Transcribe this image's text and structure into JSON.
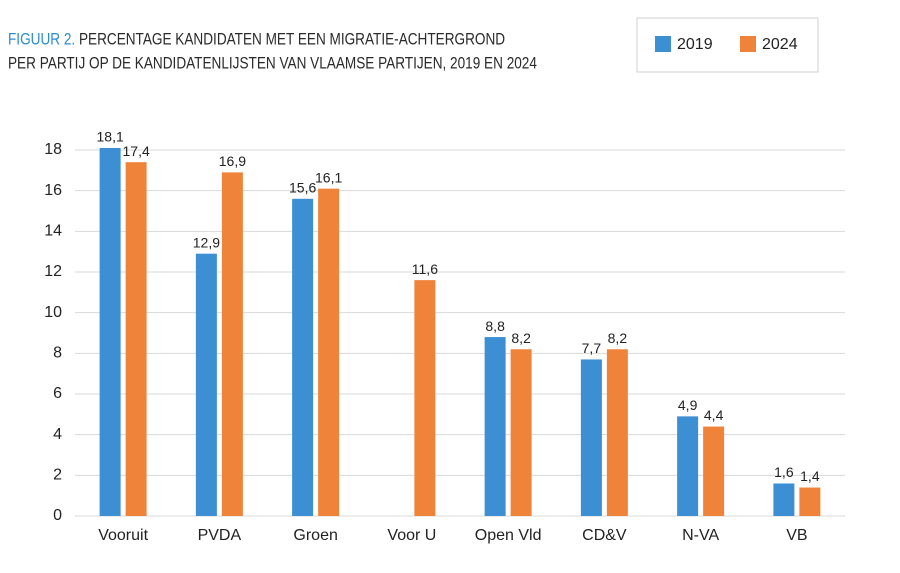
{
  "chart_data": {
    "type": "bar",
    "title_prefix": "FIGUUR 2.",
    "title": [
      "PERCENTAGE KANDIDATEN MET EEN MIGRATIE-ACHTERGROND",
      "PER PARTIJ OP DE KANDIDATENLIJSTEN VAN VLAAMSE PARTIJEN, 2019 EN 2024"
    ],
    "categories": [
      "Vooruit",
      "PVDA",
      "Groen",
      "Voor U",
      "Open Vld",
      "CD&V",
      "N-VA",
      "VB"
    ],
    "series": [
      {
        "name": "2019",
        "color": "#3d8fd3",
        "values": [
          18.1,
          12.9,
          15.6,
          null,
          8.8,
          7.7,
          4.9,
          1.6
        ],
        "value_labels": [
          "18,1",
          "12,9",
          "15,6",
          null,
          "8,8",
          "7,7",
          "4,9",
          "1,6"
        ]
      },
      {
        "name": "2024",
        "color": "#f0833a",
        "values": [
          17.4,
          16.9,
          16.1,
          11.6,
          8.2,
          8.2,
          4.4,
          1.4
        ],
        "value_labels": [
          "17,4",
          "16,9",
          "16,1",
          "11,6",
          "8,2",
          "8,2",
          "4,4",
          "1,4"
        ]
      }
    ],
    "ylim": [
      0,
      18
    ],
    "yticks": [
      0,
      2,
      4,
      6,
      8,
      10,
      12,
      14,
      16,
      18
    ],
    "grid": true
  }
}
